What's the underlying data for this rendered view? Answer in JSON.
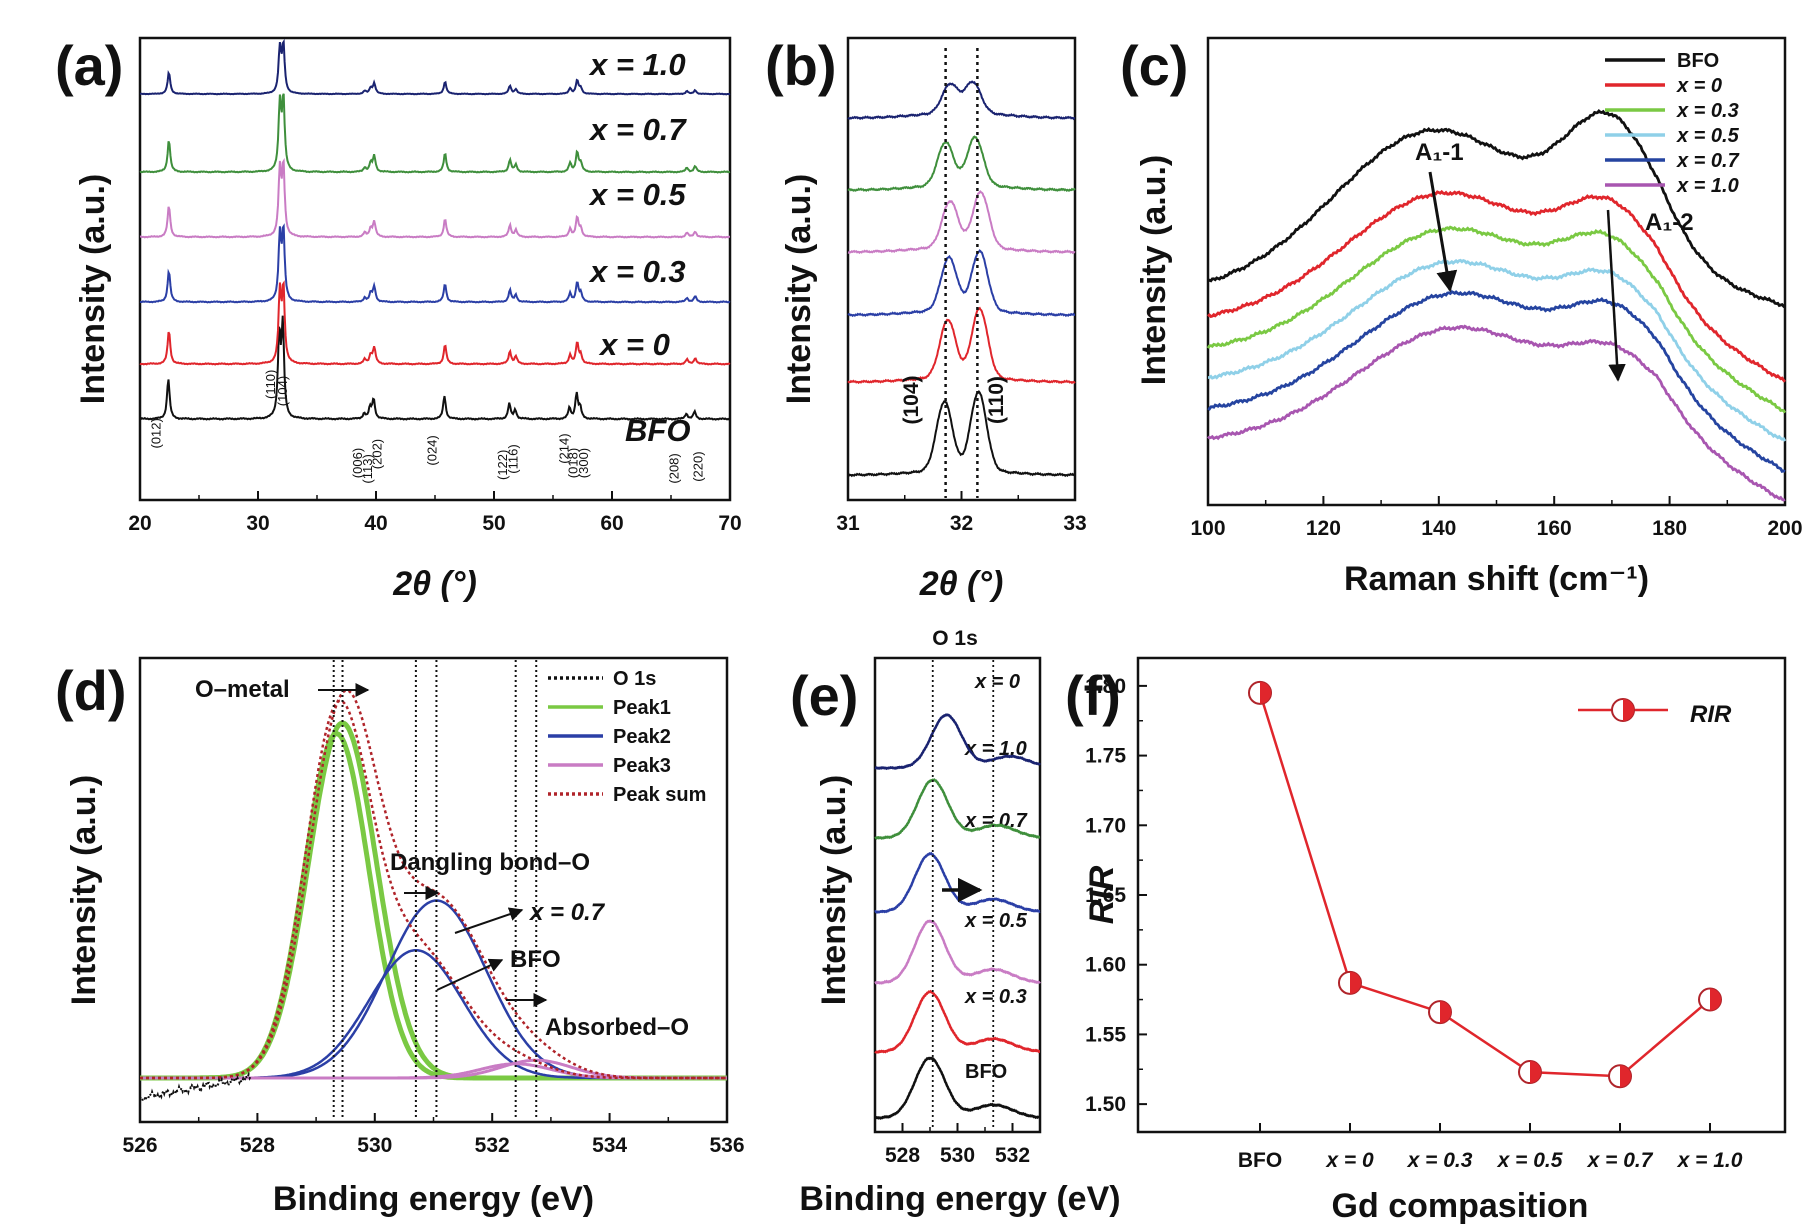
{
  "figure": {
    "colors": {
      "black": "#111111",
      "red": "#e0262c",
      "green": "#3f8f3c",
      "purple": "#c97cc4",
      "blue": "#2b3fa6",
      "navy": "#1a2370",
      "lightgreen": "#7ac943",
      "cyan": "#8fd0e8",
      "ramanblue": "#2544a0",
      "ramanpurple": "#a856b0",
      "darkred": "#b0242a",
      "axis": "#111111"
    }
  },
  "chart_data": [
    {
      "id": "a",
      "type": "line",
      "panel_label": "(a)",
      "xlabel": "2θ (°)",
      "ylabel": "Intensity (a.u.)",
      "xlim": [
        20,
        70
      ],
      "xticks": [
        "20",
        "30",
        "40",
        "50",
        "60",
        "70"
      ],
      "series": [
        {
          "name": "BFO",
          "label": "BFO",
          "color": "black"
        },
        {
          "name": "x = 0",
          "label": "x = 0",
          "color": "red"
        },
        {
          "name": "x = 0.3",
          "label": "x = 0.3",
          "color": "blue"
        },
        {
          "name": "x = 0.5",
          "label": "x = 0.5",
          "color": "purple"
        },
        {
          "name": "x = 0.7",
          "label": "x = 0.7",
          "color": "green"
        },
        {
          "name": "x = 1.0",
          "label": "x = 1.0",
          "color": "navy"
        }
      ],
      "peaks": [
        {
          "two_theta": 22.4,
          "hkl": "(012)",
          "height": 0.45
        },
        {
          "two_theta": 31.8,
          "hkl": "(104)",
          "height": 0.92
        },
        {
          "two_theta": 32.1,
          "hkl": "(110)",
          "height": 1.0
        },
        {
          "two_theta": 39.0,
          "hkl": "(113)",
          "height": 0.06
        },
        {
          "two_theta": 39.5,
          "hkl": "(006)",
          "height": 0.12
        },
        {
          "two_theta": 39.8,
          "hkl": "(202)",
          "height": 0.22
        },
        {
          "two_theta": 45.8,
          "hkl": "(024)",
          "height": 0.26
        },
        {
          "two_theta": 51.3,
          "hkl": "(116)",
          "height": 0.17
        },
        {
          "two_theta": 51.8,
          "hkl": "(122)",
          "height": 0.1
        },
        {
          "two_theta": 56.4,
          "hkl": "(018)",
          "height": 0.12
        },
        {
          "two_theta": 57.0,
          "hkl": "(214)",
          "height": 0.28
        },
        {
          "two_theta": 57.3,
          "hkl": "(300)",
          "height": 0.12
        },
        {
          "two_theta": 66.3,
          "hkl": "(208)",
          "height": 0.06
        },
        {
          "two_theta": 67.0,
          "hkl": "(220)",
          "height": 0.08
        }
      ]
    },
    {
      "id": "b",
      "type": "line",
      "panel_label": "(b)",
      "xlabel": "2θ (°)",
      "ylabel": "Intensity (a.u.)",
      "xlim": [
        31,
        33
      ],
      "xticks": [
        "31",
        "32",
        "33"
      ],
      "reference_lines": [
        31.86,
        32.14
      ],
      "peak_labels": [
        "(104)",
        "(110)"
      ],
      "series": [
        {
          "name": "BFO",
          "color": "black",
          "peak1": [
            31.85,
            0.72
          ],
          "peak2": [
            32.15,
            0.82
          ]
        },
        {
          "name": "x = 0",
          "color": "red",
          "peak1": [
            31.88,
            0.6
          ],
          "peak2": [
            32.16,
            0.72
          ]
        },
        {
          "name": "x = 0.3",
          "color": "blue",
          "peak1": [
            31.89,
            0.55
          ],
          "peak2": [
            32.16,
            0.62
          ]
        },
        {
          "name": "x = 0.5",
          "color": "purple",
          "peak1": [
            31.9,
            0.48
          ],
          "peak2": [
            32.17,
            0.58
          ]
        },
        {
          "name": "x = 0.7",
          "color": "green",
          "peak1": [
            31.86,
            0.45
          ],
          "peak2": [
            32.12,
            0.5
          ]
        },
        {
          "name": "x = 1.0",
          "color": "navy",
          "peak1": [
            31.9,
            0.3
          ],
          "peak2": [
            32.1,
            0.32
          ]
        }
      ]
    },
    {
      "id": "c",
      "type": "line",
      "panel_label": "(c)",
      "xlabel": "Raman shift (cm⁻¹)",
      "ylabel": "Intensity (a.u.)",
      "xlim": [
        100,
        200
      ],
      "xticks": [
        "100",
        "120",
        "140",
        "160",
        "180",
        "200"
      ],
      "legend": [
        "BFO",
        "x = 0",
        "x = 0.3",
        "x = 0.5",
        "x = 0.7",
        "x = 1.0"
      ],
      "annotations": [
        {
          "text": "A₁-1",
          "x": 139
        },
        {
          "text": "A₁-2",
          "x": 170
        }
      ],
      "series": [
        {
          "name": "BFO",
          "color": "black",
          "offset": 5
        },
        {
          "name": "x = 0",
          "color": "red",
          "offset": 4
        },
        {
          "name": "x = 0.3",
          "color": "lightgreen",
          "offset": 3
        },
        {
          "name": "x = 0.5",
          "color": "cyan",
          "offset": 2
        },
        {
          "name": "x = 0.7",
          "color": "ramanblue",
          "offset": 1
        },
        {
          "name": "x = 1.0",
          "color": "ramanpurple",
          "offset": 0
        }
      ]
    },
    {
      "id": "d",
      "type": "line",
      "panel_label": "(d)",
      "xlabel": "Binding energy (eV)",
      "ylabel": "Intensity (a.u.)",
      "xlim": [
        526,
        536
      ],
      "xticks": [
        "526",
        "528",
        "530",
        "532",
        "534",
        "536"
      ],
      "legend": [
        "O 1s",
        "Peak1",
        "Peak2",
        "Peak3",
        "Peak sum"
      ],
      "annotations": [
        "O–metal",
        "Dangling bond–O",
        "x = 0.7",
        "BFO",
        "Absorbed–O"
      ],
      "components": [
        {
          "name": "Peak1 (x = 0.7)",
          "center": 529.45,
          "height": 1.0,
          "sigma": 0.58
        },
        {
          "name": "Peak1 (BFO)",
          "center": 529.35,
          "height": 0.97,
          "sigma": 0.55
        },
        {
          "name": "Peak2 (x = 0.7)",
          "center": 531.05,
          "height": 0.5,
          "sigma": 0.85
        },
        {
          "name": "Peak2 (BFO)",
          "center": 530.7,
          "height": 0.36,
          "sigma": 0.8
        },
        {
          "name": "Peak3 (x = 0.7)",
          "center": 532.75,
          "height": 0.05,
          "sigma": 0.6
        },
        {
          "name": "Peak3 (BFO)",
          "center": 532.4,
          "height": 0.04,
          "sigma": 0.6
        }
      ],
      "reference_lines": [
        529.3,
        529.45,
        530.7,
        531.05,
        532.4,
        532.75
      ]
    },
    {
      "id": "e",
      "type": "line",
      "panel_label": "(e)",
      "title": "O 1s",
      "xlabel": "Binding energy (eV)",
      "ylabel": "Intensity (a.u.)",
      "xlim": [
        527,
        533
      ],
      "xticks": [
        "528",
        "530",
        "532"
      ],
      "reference_lines": [
        529.1,
        531.3
      ],
      "series": [
        {
          "name": "BFO",
          "label": "BFO",
          "color": "black",
          "center": 529.0
        },
        {
          "name": "x = 0.3",
          "label": "x = 0.3",
          "color": "red",
          "center": 529.0
        },
        {
          "name": "x = 0.5",
          "label": "x = 0.5",
          "color": "purple",
          "center": 529.0
        },
        {
          "name": "x = 0.7",
          "label": "x = 0.7",
          "color": "blue",
          "center": 529.0
        },
        {
          "name": "x = 1.0",
          "label": "x = 1.0",
          "color": "green",
          "center": 529.1
        },
        {
          "name": "x = 0",
          "label": "x = 0",
          "color": "navy",
          "center": 529.6
        }
      ]
    },
    {
      "id": "f",
      "type": "line",
      "panel_label": "(f)",
      "xlabel": "Gd compasition",
      "ylabel": "RIR",
      "categories": [
        "BFO",
        "x = 0",
        "x = 0.3",
        "x = 0.5",
        "x = 0.7",
        "x = 1.0"
      ],
      "values": [
        1.795,
        1.587,
        1.566,
        1.523,
        1.52,
        1.575
      ],
      "ylim": [
        1.48,
        1.82
      ],
      "yticks": [
        "1.50",
        "1.55",
        "1.60",
        "1.65",
        "1.70",
        "1.75",
        "1.80"
      ],
      "legend": "RIR",
      "color": "darkred"
    }
  ]
}
